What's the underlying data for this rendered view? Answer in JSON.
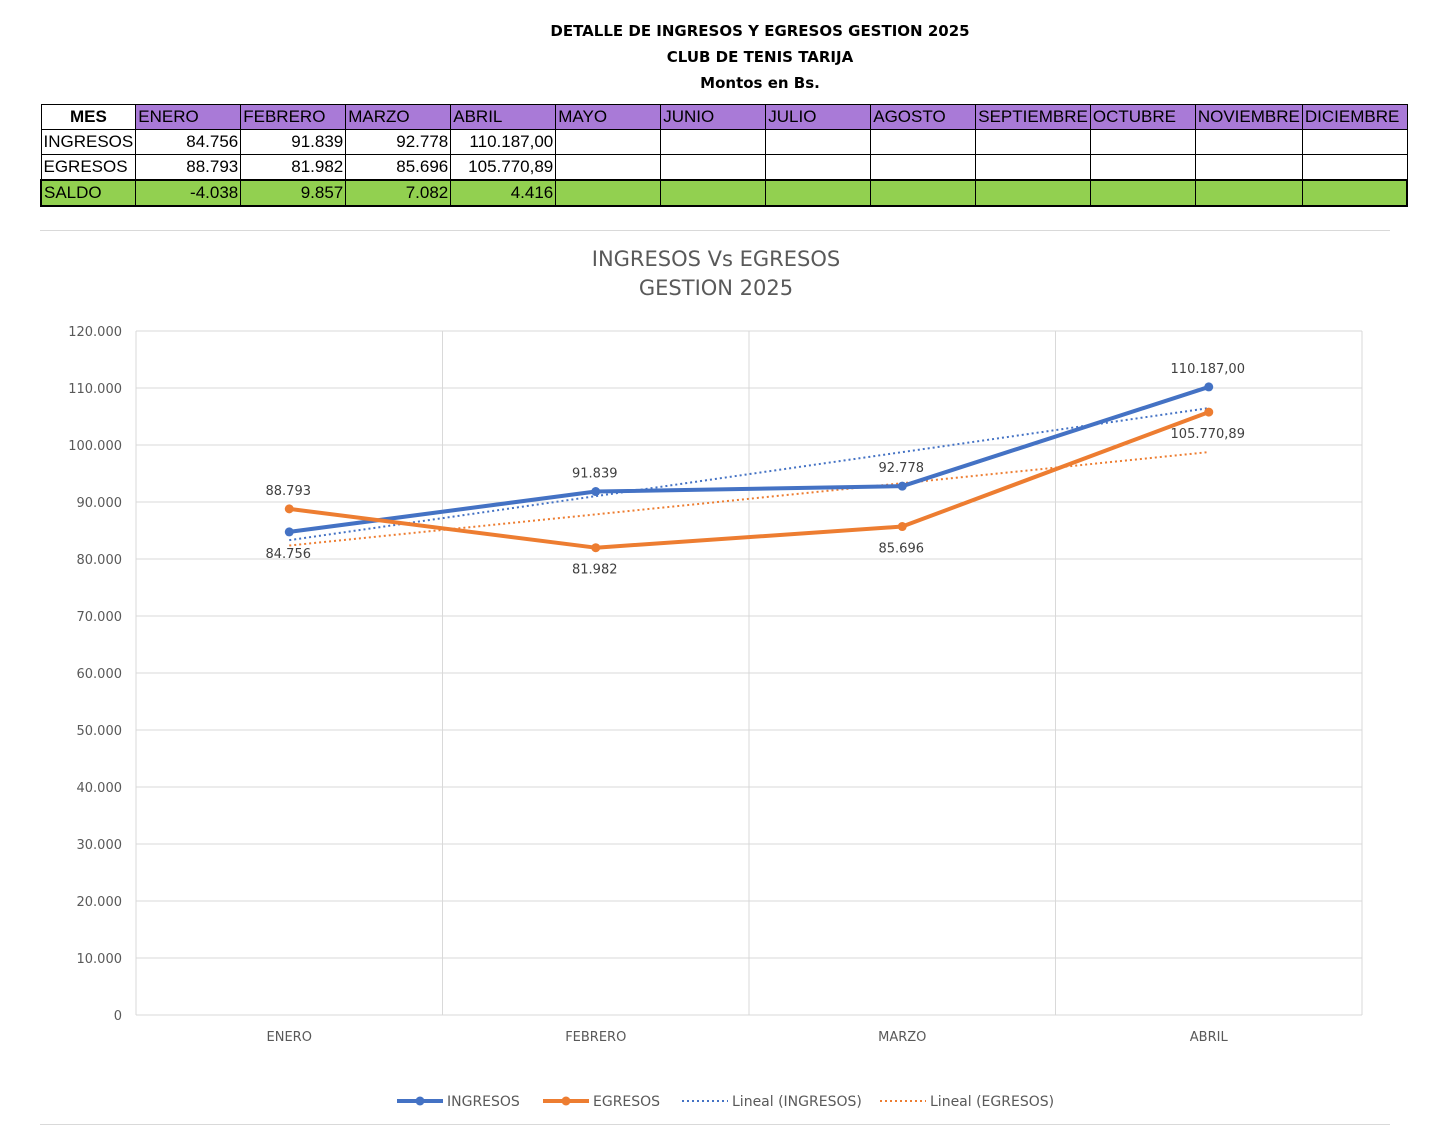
{
  "header": {
    "line1": "DETALLE DE INGRESOS Y EGRESOS GESTION 2025",
    "line2": "CLUB DE TENIS TARIJA",
    "line3": "Montos en Bs."
  },
  "table": {
    "corner": "MES",
    "months": [
      "ENERO",
      "FEBRERO",
      "MARZO",
      "ABRIL",
      "MAYO",
      "JUNIO",
      "JULIO",
      "AGOSTO",
      "SEPTIEMBRE",
      "OCTUBRE",
      "NOVIEMBRE",
      "DICIEMBRE"
    ],
    "rows": [
      {
        "label": "INGRESOS",
        "values": [
          "84.756",
          "91.839",
          "92.778",
          "110.187,00",
          "",
          "",
          "",
          "",
          "",
          "",
          "",
          ""
        ]
      },
      {
        "label": "EGRESOS",
        "values": [
          "88.793",
          "81.982",
          "85.696",
          "105.770,89",
          "",
          "",
          "",
          "",
          "",
          "",
          "",
          ""
        ]
      },
      {
        "label": "SALDO",
        "values": [
          "-4.038",
          "9.857",
          "7.082",
          "4.416",
          "",
          "",
          "",
          "",
          "",
          "",
          "",
          ""
        ]
      }
    ],
    "colors": {
      "header_bg": "#a97ad7",
      "saldo_bg": "#92d050"
    }
  },
  "chart_data": {
    "type": "line",
    "title": "INGRESOS Vs EGRESOS",
    "subtitle": "GESTION 2025",
    "categories": [
      "ENERO",
      "FEBRERO",
      "MARZO",
      "ABRIL"
    ],
    "ylim": [
      0,
      120000
    ],
    "yticks": [
      0,
      10000,
      20000,
      30000,
      40000,
      50000,
      60000,
      70000,
      80000,
      90000,
      100000,
      110000,
      120000
    ],
    "ytick_labels": [
      "0",
      "10.000",
      "20.000",
      "30.000",
      "40.000",
      "50.000",
      "60.000",
      "70.000",
      "80.000",
      "90.000",
      "100.000",
      "110.000",
      "120.000"
    ],
    "grid": true,
    "legend": "bottom",
    "series": [
      {
        "name": "INGRESOS",
        "color": "#4472c4",
        "values": [
          84756,
          91839,
          92778,
          110187
        ],
        "labels": [
          "84.756",
          "91.839",
          "92.778",
          "110.187,00"
        ]
      },
      {
        "name": "EGRESOS",
        "color": "#ed7d31",
        "values": [
          88793,
          81982,
          85696,
          105770.89
        ],
        "labels": [
          "88.793",
          "81.982",
          "85.696",
          "105.770,89"
        ]
      }
    ],
    "trendlines": [
      {
        "name": "Lineal (INGRESOS)",
        "color": "#4472c4",
        "of": "INGRESOS"
      },
      {
        "name": "Lineal (EGRESOS)",
        "color": "#ed7d31",
        "of": "EGRESOS"
      }
    ]
  }
}
